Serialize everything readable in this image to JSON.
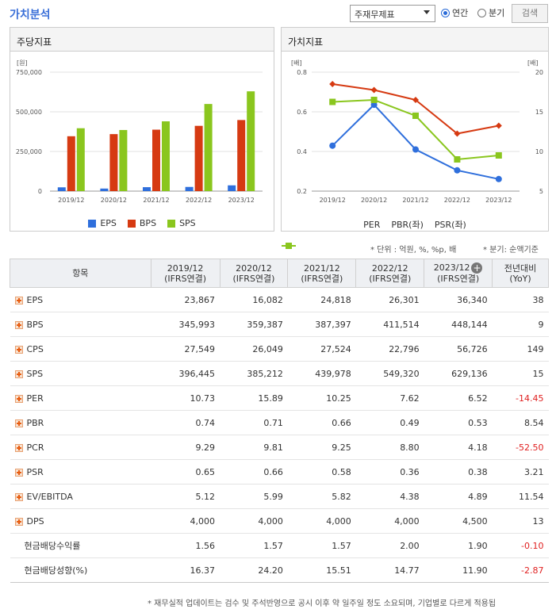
{
  "header": {
    "title": "가치분석",
    "select_value": "주재무제표",
    "radio_annual": "연간",
    "radio_quarter": "분기",
    "search_label": "검색",
    "accent_color": "#3a6fd8"
  },
  "notes": {
    "unit": "* 단위 : 억원, %, %p, 배",
    "basis": "* 분기: 순액기준"
  },
  "footnote": "* 재무실적 업데이트는 검수 및 주석반영으로 공시 이후 약 일주일 정도 소요되며, 기업별로 다르게 적용됩",
  "table": {
    "item_header": "항목",
    "yoy_header_1": "전년대비",
    "yoy_header_2": "(YoY)",
    "periods": [
      {
        "label": "2019/12",
        "sub": "(IFRS연결)"
      },
      {
        "label": "2020/12",
        "sub": "(IFRS연결)"
      },
      {
        "label": "2021/12",
        "sub": "(IFRS연결)"
      },
      {
        "label": "2022/12",
        "sub": "(IFRS연결)"
      },
      {
        "label": "2023/12",
        "sub": "(IFRS연결)"
      }
    ],
    "rows": [
      {
        "label": "EPS",
        "values": [
          "23,867",
          "16,082",
          "24,818",
          "26,301",
          "36,340"
        ],
        "yoy": "38"
      },
      {
        "label": "BPS",
        "values": [
          "345,993",
          "359,387",
          "387,397",
          "411,514",
          "448,144"
        ],
        "yoy": "9"
      },
      {
        "label": "CPS",
        "values": [
          "27,549",
          "26,049",
          "27,524",
          "22,796",
          "56,726"
        ],
        "yoy": "149"
      },
      {
        "label": "SPS",
        "values": [
          "396,445",
          "385,212",
          "439,978",
          "549,320",
          "629,136"
        ],
        "yoy": "15"
      },
      {
        "label": "PER",
        "values": [
          "10.73",
          "15.89",
          "10.25",
          "7.62",
          "6.52"
        ],
        "yoy": "-14.45"
      },
      {
        "label": "PBR",
        "values": [
          "0.74",
          "0.71",
          "0.66",
          "0.49",
          "0.53"
        ],
        "yoy": "8.54"
      },
      {
        "label": "PCR",
        "values": [
          "9.29",
          "9.81",
          "9.25",
          "8.80",
          "4.18"
        ],
        "yoy": "-52.50"
      },
      {
        "label": "PSR",
        "values": [
          "0.65",
          "0.66",
          "0.58",
          "0.36",
          "0.38"
        ],
        "yoy": "3.21"
      },
      {
        "label": "EV/EBITDA",
        "values": [
          "5.12",
          "5.99",
          "5.82",
          "4.38",
          "4.89"
        ],
        "yoy": "11.54"
      },
      {
        "label": "DPS",
        "values": [
          "4,000",
          "4,000",
          "4,000",
          "4,000",
          "4,500"
        ],
        "yoy": "13"
      },
      {
        "label": "현금배당수익률",
        "values": [
          "1.56",
          "1.57",
          "1.57",
          "2.00",
          "1.90"
        ],
        "yoy": "-0.10"
      },
      {
        "label": "현금배당성향(%)",
        "values": [
          "16.37",
          "24.20",
          "15.51",
          "14.77",
          "11.90"
        ],
        "yoy": "-2.87"
      }
    ]
  },
  "chart_data": [
    {
      "type": "bar",
      "title": "주당지표",
      "ylabel": "[원]",
      "categories": [
        "2019/12",
        "2020/12",
        "2021/12",
        "2022/12",
        "2023/12"
      ],
      "ylim": [
        0,
        750000
      ],
      "yticks": [
        "750,000",
        "500,000",
        "250,000",
        "0"
      ],
      "ytick_values": [
        750000,
        500000,
        250000,
        0
      ],
      "legend": "bottom",
      "series": [
        {
          "name": "EPS",
          "color": "#2f6fdc",
          "values": [
            23867,
            16082,
            24818,
            26301,
            36340
          ]
        },
        {
          "name": "BPS",
          "color": "#d63a12",
          "values": [
            345993,
            359387,
            387397,
            411514,
            448144
          ]
        },
        {
          "name": "SPS",
          "color": "#8ac61e",
          "values": [
            396445,
            385212,
            439978,
            549320,
            629136
          ]
        }
      ]
    },
    {
      "type": "line",
      "title": "가치지표",
      "ylabel_left": "[배]",
      "ylabel_right": "[배]",
      "categories": [
        "2019/12",
        "2020/12",
        "2021/12",
        "2022/12",
        "2023/12"
      ],
      "ylim_left": [
        0.2,
        0.8
      ],
      "yticks_left": [
        "0.8",
        "0.6",
        "0.4",
        "0.2"
      ],
      "ytick_values_left": [
        0.8,
        0.6,
        0.4,
        0.2
      ],
      "ylim_right": [
        5,
        20
      ],
      "yticks_right": [
        "20",
        "15",
        "10",
        "5"
      ],
      "ytick_values_right": [
        20,
        15,
        10,
        5
      ],
      "legend": "bottom",
      "series": [
        {
          "name": "PER",
          "axis": "right",
          "color": "#2f6fdc",
          "marker": "circle",
          "values": [
            10.73,
            15.89,
            10.25,
            7.62,
            6.52
          ]
        },
        {
          "name": "PBR(좌)",
          "axis": "left",
          "color": "#d63a12",
          "marker": "diamond",
          "values": [
            0.74,
            0.71,
            0.66,
            0.49,
            0.53
          ]
        },
        {
          "name": "PSR(좌)",
          "axis": "left",
          "color": "#8ac61e",
          "marker": "square",
          "values": [
            0.65,
            0.66,
            0.58,
            0.36,
            0.38
          ]
        }
      ]
    }
  ]
}
